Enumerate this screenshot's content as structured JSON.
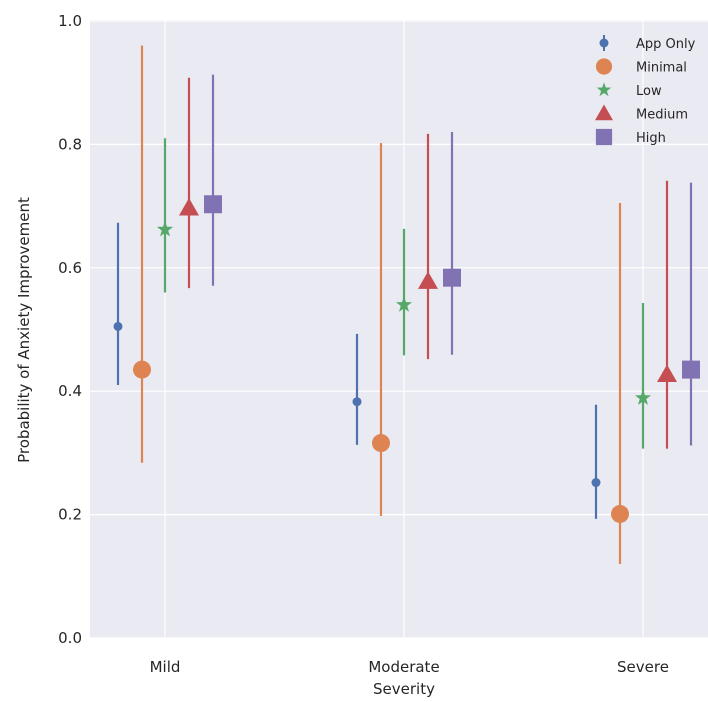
{
  "chart_data": {
    "type": "scatter",
    "xlabel": "Severity",
    "ylabel": "Probability of Anxiety Improvement",
    "categories": [
      "Mild",
      "Moderate",
      "Severe"
    ],
    "ylim": [
      0.0,
      1.0
    ],
    "yticks": [
      "0.0",
      "0.2",
      "0.4",
      "0.6",
      "0.8",
      "1.0"
    ],
    "grid": true,
    "legend_position": "top-right",
    "series": [
      {
        "name": "App Only",
        "marker": "circle-small",
        "color": "#4c72b0",
        "values": [
          0.505,
          0.383,
          0.252
        ],
        "lower": [
          0.41,
          0.313,
          0.193
        ],
        "upper": [
          0.673,
          0.493,
          0.378
        ]
      },
      {
        "name": "Minimal",
        "marker": "circle",
        "color": "#dd8452",
        "values": [
          0.435,
          0.316,
          0.201
        ],
        "lower": [
          0.284,
          0.198,
          0.12
        ],
        "upper": [
          0.96,
          0.802,
          0.705
        ]
      },
      {
        "name": "Low",
        "marker": "star",
        "color": "#55a868",
        "values": [
          0.662,
          0.54,
          0.389
        ],
        "lower": [
          0.56,
          0.458,
          0.307
        ],
        "upper": [
          0.81,
          0.663,
          0.543
        ]
      },
      {
        "name": "Medium",
        "marker": "triangle",
        "color": "#c44e52",
        "values": [
          0.697,
          0.578,
          0.427
        ],
        "lower": [
          0.567,
          0.452,
          0.307
        ],
        "upper": [
          0.908,
          0.817,
          0.741
        ]
      },
      {
        "name": "High",
        "marker": "square",
        "color": "#8172b3",
        "values": [
          0.703,
          0.584,
          0.435
        ],
        "lower": [
          0.571,
          0.459,
          0.312
        ],
        "upper": [
          0.913,
          0.82,
          0.738
        ]
      }
    ]
  }
}
